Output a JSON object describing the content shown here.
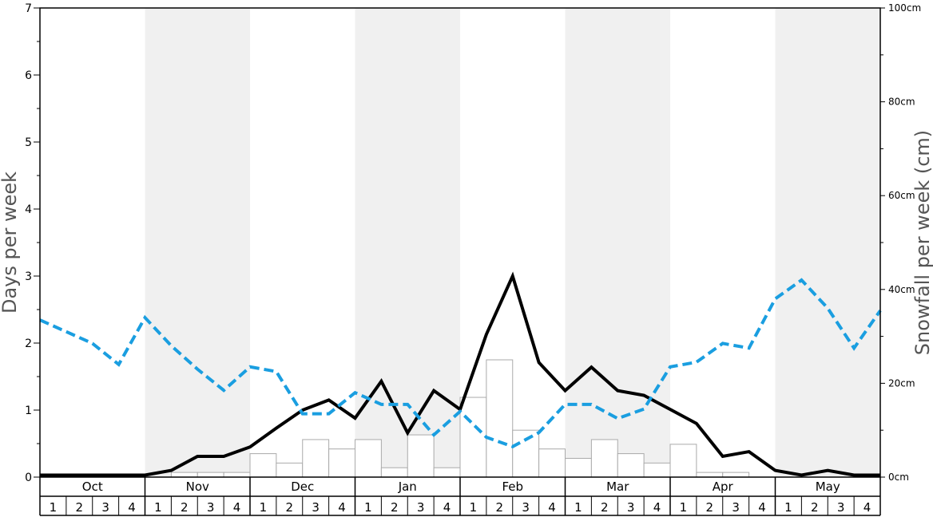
{
  "chart_data": {
    "type": "bar",
    "title": "",
    "ylabel_left": "Days per week",
    "ylabel_right": "Snowfall per week (cm)",
    "ylim_left": [
      0,
      7
    ],
    "yticks_left": [
      "0",
      "1",
      "2",
      "3",
      "4",
      "5",
      "6",
      "7"
    ],
    "ylim_right": [
      0,
      100
    ],
    "yticks_right": [
      "0cm",
      "20cm",
      "40cm",
      "60cm",
      "80cm",
      "100cm"
    ],
    "months": [
      "Oct",
      "Nov",
      "Dec",
      "Jan",
      "Feb",
      "Mar",
      "Apr",
      "May"
    ],
    "week_labels": [
      "1",
      "2",
      "3",
      "4"
    ],
    "shaded_months": [
      "Nov",
      "Jan",
      "Mar",
      "May"
    ],
    "grid": false,
    "series": [
      {
        "kind": "bar",
        "axis": "right",
        "color": "#ffffff",
        "edge_color": "#aaaaaa",
        "values": [
          0,
          0,
          0,
          0,
          0,
          1,
          1,
          1,
          5,
          3,
          8,
          6,
          8,
          2,
          9,
          2,
          17,
          25,
          10,
          6,
          4,
          8,
          5,
          3,
          7,
          1,
          1,
          0,
          0,
          0,
          0,
          0
        ]
      },
      {
        "kind": "line",
        "axis": "left",
        "style": "solid",
        "color": "#000000",
        "values": [
          0.03,
          0.03,
          0.03,
          0.03,
          0.03,
          0.1,
          0.31,
          0.31,
          0.45,
          0.73,
          1.0,
          1.15,
          0.88,
          1.43,
          0.66,
          1.29,
          1.01,
          2.13,
          3.0,
          1.71,
          1.29,
          1.64,
          1.29,
          1.22,
          1.01,
          0.8,
          0.31,
          0.38,
          0.1,
          0.03,
          0.1,
          0.03,
          0.03
        ]
      },
      {
        "kind": "line",
        "axis": "right",
        "style": "dashed",
        "color": "#1a9ee0",
        "values": [
          33.5,
          31,
          28.5,
          24,
          34,
          28,
          23,
          18.5,
          23.5,
          22.5,
          13.5,
          13.5,
          18,
          15.5,
          15.5,
          9,
          14,
          8.5,
          6.5,
          9.5,
          15.5,
          15.5,
          12.5,
          14.5,
          23.5,
          24.5,
          28.5,
          27.5,
          38,
          42,
          36,
          27.5,
          35.5
        ]
      }
    ]
  }
}
